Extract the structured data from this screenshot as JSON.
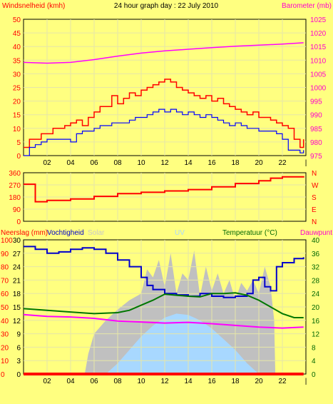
{
  "chart_data": [
    {
      "type": "line",
      "title": "24 hour graph day : 22 July 2010",
      "ylabel": "Windsnelheid (kmh)",
      "y2label": "Barometer (mb)",
      "x_ticks": [
        "02",
        "04",
        "06",
        "08",
        "10",
        "12",
        "14",
        "16",
        "18",
        "20",
        "22",
        "|"
      ],
      "ylim": [
        0,
        50
      ],
      "y_ticks": [
        "0",
        "5",
        "10",
        "15",
        "20",
        "25",
        "30",
        "35",
        "40",
        "45",
        "50"
      ],
      "y2lim": [
        975,
        1025
      ],
      "y2_ticks": [
        "975",
        "980",
        "985",
        "990",
        "995",
        "1000",
        "1005",
        "1010",
        "1015",
        "1020",
        "1025"
      ],
      "grid": true,
      "series": [
        {
          "key": "wind_gust",
          "color": "#ff0000",
          "axis": "y",
          "x": [
            0,
            0.5,
            1,
            1.5,
            2,
            2.5,
            3,
            3.5,
            4,
            4.5,
            5,
            5.5,
            6,
            6.5,
            7,
            7.5,
            8,
            8.5,
            9,
            9.5,
            10,
            10.5,
            11,
            11.5,
            12,
            12.5,
            13,
            13.5,
            14,
            14.5,
            15,
            15.5,
            16,
            16.5,
            17,
            17.5,
            18,
            18.5,
            19,
            19.5,
            20,
            20.5,
            21,
            21.5,
            22,
            22.5,
            23,
            23.5,
            23.8
          ],
          "y": [
            3,
            6,
            6,
            8,
            8,
            10,
            10,
            11,
            12,
            13,
            11,
            14,
            16,
            18,
            18,
            22,
            19,
            21,
            23,
            22,
            24,
            25,
            26,
            27,
            28,
            27,
            25,
            24,
            23,
            22,
            21,
            22,
            20,
            21,
            19,
            18,
            17,
            16,
            15,
            16,
            14,
            14,
            13,
            12,
            11,
            10,
            6,
            3,
            6
          ]
        },
        {
          "key": "wind_avg",
          "color": "#0000ff",
          "axis": "y",
          "x": [
            0,
            0.5,
            1,
            1.5,
            2,
            2.5,
            3,
            3.5,
            4,
            4.5,
            5,
            5.5,
            6,
            6.5,
            7,
            7.5,
            8,
            8.5,
            9,
            9.5,
            10,
            10.5,
            11,
            11.5,
            12,
            12.5,
            13,
            13.5,
            14,
            14.5,
            15,
            15.5,
            16,
            16.5,
            17,
            17.5,
            18,
            18.5,
            19,
            19.5,
            20,
            20.5,
            21,
            21.5,
            22,
            22.5,
            23,
            23.5,
            23.8
          ],
          "y": [
            0,
            3,
            4,
            5,
            6,
            6,
            6,
            6,
            5,
            8,
            9,
            9,
            10,
            11,
            11,
            12,
            12,
            12,
            13,
            14,
            14,
            15,
            16,
            17,
            16,
            17,
            16,
            15,
            16,
            15,
            14,
            15,
            14,
            13,
            12,
            11,
            12,
            11,
            10,
            10,
            9,
            9,
            9,
            8,
            6,
            2,
            2,
            1,
            2
          ]
        },
        {
          "key": "barometer",
          "color": "#ff00ff",
          "axis": "y2",
          "x": [
            0,
            2,
            4,
            6,
            8,
            10,
            12,
            14,
            16,
            18,
            20,
            22,
            23.8
          ],
          "y": [
            1009.2,
            1008.9,
            1009.2,
            1010.2,
            1011.5,
            1012.6,
            1013.4,
            1014,
            1014.6,
            1015.1,
            1015.5,
            1015.9,
            1016.4
          ]
        }
      ]
    },
    {
      "type": "line",
      "x_ticks": [
        "02",
        "04",
        "06",
        "08",
        "10",
        "12",
        "14",
        "16",
        "18",
        "20",
        "22",
        "|"
      ],
      "ylim": [
        0,
        360
      ],
      "y_ticks": [
        "0",
        "90",
        "180",
        "270",
        "360"
      ],
      "y2_ticks": [
        "N",
        "E",
        "S",
        "W",
        "N"
      ],
      "grid": true,
      "series": [
        {
          "key": "wind_direction",
          "color": "#ff0000",
          "axis": "y",
          "x": [
            0,
            0.8,
            1,
            2,
            4,
            6,
            8,
            10,
            12,
            14,
            16,
            18,
            20,
            21,
            22,
            23.8
          ],
          "y": [
            275,
            275,
            145,
            155,
            165,
            185,
            205,
            215,
            225,
            235,
            255,
            280,
            300,
            320,
            330,
            335
          ]
        }
      ]
    },
    {
      "type": "line",
      "labels": [
        "Neerslag (mm)",
        "Vochtigheid",
        "Solar",
        "UV",
        "Temperatuur (°C)",
        "Dauwpunt"
      ],
      "x_ticks": [
        "02",
        "04",
        "06",
        "08",
        "10",
        "12",
        "14",
        "16",
        "18",
        "20",
        "22",
        "|"
      ],
      "y_ticks_hum": [
        "0",
        "10",
        "20",
        "30",
        "40",
        "50",
        "60",
        "70",
        "80",
        "90",
        "100"
      ],
      "y_ticks_rain": [
        "0",
        "3",
        "6",
        "9",
        "12",
        "15",
        "18",
        "21",
        "24",
        "27",
        "30"
      ],
      "ylim_hum": [
        0,
        100
      ],
      "y2lim": [
        0,
        40
      ],
      "y2_ticks": [
        "0",
        "4",
        "8",
        "12",
        "16",
        "20",
        "24",
        "28",
        "32",
        "36",
        "40"
      ],
      "grid": true,
      "series": [
        {
          "key": "solar",
          "color": "#c0c0c0",
          "axis": "hum",
          "x": [
            0,
            5.2,
            5.5,
            6,
            7,
            8,
            9,
            10,
            10.5,
            11,
            11.5,
            12,
            12.5,
            13,
            13.5,
            14,
            14.5,
            15,
            15.5,
            16,
            16.5,
            17,
            17.5,
            18,
            18.5,
            19,
            19.5,
            20,
            20.5,
            21,
            21.3,
            21.4,
            23.8
          ],
          "y": [
            0,
            0,
            15,
            30,
            40,
            48,
            55,
            60,
            78,
            72,
            85,
            65,
            90,
            60,
            75,
            70,
            92,
            58,
            80,
            62,
            75,
            60,
            70,
            55,
            68,
            62,
            70,
            60,
            80,
            65,
            40,
            0,
            0
          ]
        },
        {
          "key": "uv",
          "color": "#a8d8ff",
          "axis": "hum",
          "x": [
            0,
            7,
            8,
            9,
            10,
            11,
            12,
            13,
            14,
            15,
            16,
            17,
            18,
            19,
            20,
            21,
            23.8
          ],
          "y": [
            0,
            0,
            8,
            18,
            28,
            36,
            42,
            45,
            44,
            40,
            34,
            26,
            18,
            8,
            0,
            0,
            0
          ]
        },
        {
          "key": "humidity",
          "color": "#0000cc",
          "axis": "hum",
          "x": [
            0,
            1,
            2,
            3,
            4,
            5,
            6,
            7,
            8,
            9,
            10,
            10.5,
            11,
            12,
            13,
            14,
            15,
            16,
            17,
            18,
            19,
            19.5,
            20,
            20.5,
            21,
            21.5,
            22,
            23,
            23.8
          ],
          "y": [
            95,
            93,
            90,
            91,
            93,
            94,
            93,
            90,
            85,
            80,
            72,
            66,
            63,
            60,
            59,
            58,
            60,
            58,
            57,
            58,
            60,
            70,
            72,
            65,
            62,
            80,
            83,
            86,
            87
          ]
        },
        {
          "key": "temperature",
          "color": "#007700",
          "axis": "temp",
          "x": [
            0,
            2,
            4,
            6,
            8,
            9,
            10,
            11,
            12,
            13,
            14,
            15,
            16,
            17,
            18,
            19,
            20,
            21,
            22,
            23,
            23.8
          ],
          "y": [
            19.5,
            19,
            18.5,
            18,
            18.3,
            19,
            20.5,
            22,
            23.8,
            23.5,
            23.2,
            23,
            24,
            24,
            24.2,
            23.5,
            22,
            20,
            18,
            16.8,
            16.8
          ]
        },
        {
          "key": "dewpoint",
          "color": "#ff00ff",
          "axis": "temp",
          "x": [
            0,
            2,
            4,
            6,
            8,
            10,
            12,
            14,
            16,
            18,
            20,
            22,
            23.8
          ],
          "y": [
            17.7,
            17.2,
            17,
            16.6,
            15.8,
            15.5,
            15.2,
            15.4,
            15,
            14.5,
            14,
            13.7,
            14
          ]
        },
        {
          "key": "rain",
          "color": "#ff0000",
          "axis": "hum",
          "x": [
            0,
            23.8
          ],
          "y": [
            0,
            0
          ]
        }
      ]
    }
  ]
}
